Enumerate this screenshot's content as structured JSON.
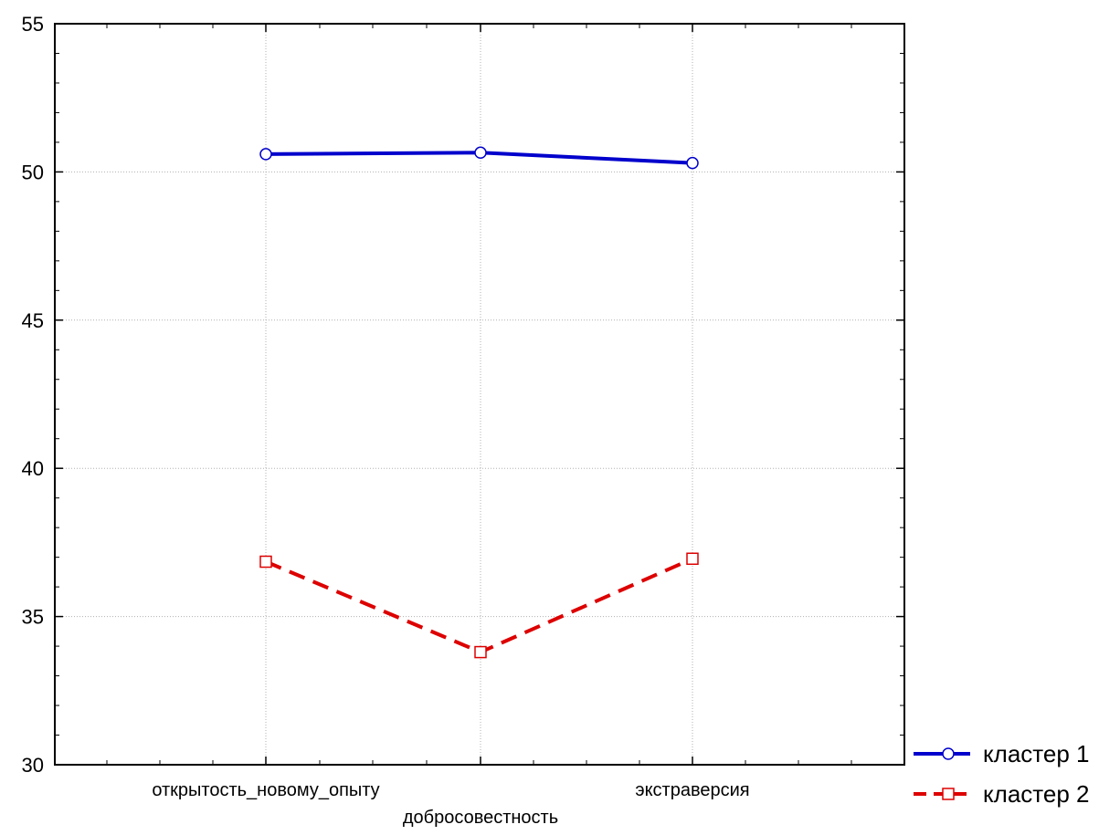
{
  "chart_data": {
    "type": "line",
    "categories": [
      "открытость_новому_опыту",
      "добросовестность",
      "экстраверсия"
    ],
    "series": [
      {
        "name": "кластер 1",
        "values": [
          50.6,
          50.65,
          50.3
        ],
        "color": "#0000cc",
        "line_style": "solid",
        "marker": "circle"
      },
      {
        "name": "кластер 2",
        "values": [
          36.85,
          33.8,
          36.95
        ],
        "color": "#dd0000",
        "line_style": "dashed",
        "marker": "square"
      }
    ],
    "ylim": [
      30,
      55
    ],
    "yticks": [
      "30",
      "35",
      "40",
      "45",
      "50",
      "55"
    ],
    "grid": true,
    "legend_position": "bottom-right"
  }
}
